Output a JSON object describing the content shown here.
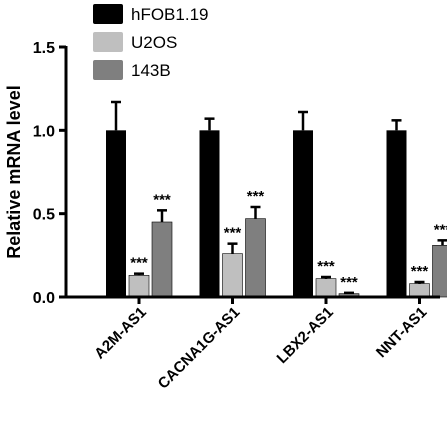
{
  "chart_data": {
    "type": "bar",
    "ylabel": "Relative  mRNA level",
    "xlabel": "",
    "ylim": [
      0,
      1.5
    ],
    "yticks": [
      "0.0",
      "0.5",
      "1.0",
      "1.5"
    ],
    "categories": [
      "A2M-AS1",
      "CACNA1G-AS1",
      "LBX2-AS1",
      "NNT-AS1"
    ],
    "series": [
      {
        "name": "hFOB1.19",
        "color": "#000000",
        "values": [
          1.0,
          1.0,
          1.0,
          1.0
        ],
        "errors": [
          0.17,
          0.07,
          0.11,
          0.06
        ],
        "significance": [
          "",
          "",
          "",
          ""
        ]
      },
      {
        "name": "U2OS",
        "color": "#bfbfbf",
        "values": [
          0.13,
          0.26,
          0.11,
          0.08
        ],
        "errors": [
          0.01,
          0.06,
          0.01,
          0.01
        ],
        "significance": [
          "***",
          "***",
          "***",
          "***"
        ]
      },
      {
        "name": "143B",
        "color": "#7f7f7f",
        "values": [
          0.45,
          0.47,
          0.02,
          0.31
        ],
        "errors": [
          0.07,
          0.07,
          0.005,
          0.03
        ],
        "significance": [
          "***",
          "***",
          "***",
          "***"
        ]
      }
    ],
    "legend": "top-left",
    "grid": false
  }
}
